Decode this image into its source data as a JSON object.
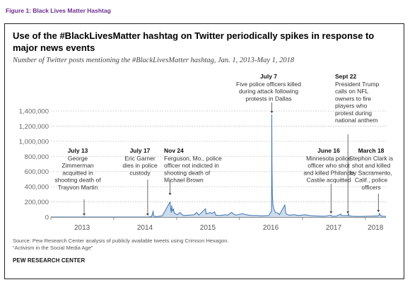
{
  "figure_caption": "Figure 1: Black Lives Matter Hashtag",
  "source_note": [
    "Source: Pew Research Center analysis of publicly available tweets using Crimson Hexagon.",
    "“Activism in the Social Media Age”"
  ],
  "brand": "PEW RESEARCH CENTER",
  "colors": {
    "line": "#3d74b0",
    "fill": "#6f9cc9",
    "grid": "#b9b9b9",
    "caption": "#6b2d8f",
    "axis": "#8c8c8c"
  },
  "chart_data": {
    "type": "line",
    "title": "Use of the #BlackLivesMatter hashtag on Twitter periodically spikes in response to major news events",
    "subtitle": "Number of Twitter posts mentioning the #BlackLivesMatter hashtag, Jan. 1, 2013-May 1, 2018",
    "xlabel": "",
    "ylabel": "",
    "x_range": [
      "2013-01-01",
      "2018-05-01"
    ],
    "ylim": [
      0,
      1400000
    ],
    "y_ticks": [
      0,
      200000,
      400000,
      600000,
      800000,
      1000000,
      1200000,
      1400000
    ],
    "y_tick_labels": [
      "0",
      "200,000",
      "400,000",
      "600,000",
      "800,000",
      "1,000,000",
      "1,200,000",
      "1,400,000"
    ],
    "x_ticks": [
      "2013-07-01",
      "2014-07-01",
      "2015-07-01",
      "2016-07-01",
      "2017-07-01",
      "2018-03-01"
    ],
    "x_tick_labels": [
      "2013",
      "2014",
      "2015",
      "2016",
      "2017",
      "2018"
    ],
    "grid": "horizontal dotted",
    "series": [
      {
        "points": [
          [
            "2013-01-01",
            0
          ],
          [
            "2013-07-13",
            0
          ],
          [
            "2013-07-14",
            5000
          ],
          [
            "2013-07-16",
            0
          ],
          [
            "2014-07-17",
            0
          ],
          [
            "2014-08-08",
            5000
          ],
          [
            "2014-08-11",
            25000
          ],
          [
            "2014-08-14",
            40000
          ],
          [
            "2014-08-18",
            80000
          ],
          [
            "2014-08-20",
            15000
          ],
          [
            "2014-08-25",
            10000
          ],
          [
            "2014-09-05",
            6000
          ],
          [
            "2014-10-10",
            15000
          ],
          [
            "2014-11-24",
            200000
          ],
          [
            "2014-11-25",
            170000
          ],
          [
            "2014-11-27",
            110000
          ],
          [
            "2014-12-01",
            60000
          ],
          [
            "2014-12-04",
            150000
          ],
          [
            "2014-12-06",
            100000
          ],
          [
            "2014-12-10",
            80000
          ],
          [
            "2014-12-14",
            110000
          ],
          [
            "2014-12-18",
            50000
          ],
          [
            "2014-12-24",
            45000
          ],
          [
            "2015-01-05",
            30000
          ],
          [
            "2015-01-19",
            60000
          ],
          [
            "2015-02-10",
            20000
          ],
          [
            "2015-03-12",
            25000
          ],
          [
            "2015-04-12",
            30000
          ],
          [
            "2015-04-28",
            60000
          ],
          [
            "2015-05-10",
            25000
          ],
          [
            "2015-06-18",
            110000
          ],
          [
            "2015-06-22",
            40000
          ],
          [
            "2015-07-16",
            60000
          ],
          [
            "2015-07-23",
            45000
          ],
          [
            "2015-08-10",
            70000
          ],
          [
            "2015-08-16",
            25000
          ],
          [
            "2015-09-10",
            20000
          ],
          [
            "2015-10-10",
            30000
          ],
          [
            "2015-10-25",
            25000
          ],
          [
            "2015-11-16",
            60000
          ],
          [
            "2015-11-28",
            40000
          ],
          [
            "2015-12-12",
            25000
          ],
          [
            "2016-01-18",
            45000
          ],
          [
            "2016-02-10",
            30000
          ],
          [
            "2016-03-10",
            20000
          ],
          [
            "2016-04-10",
            20000
          ],
          [
            "2016-05-10",
            15000
          ],
          [
            "2016-06-20",
            20000
          ],
          [
            "2016-07-05",
            80000
          ],
          [
            "2016-07-06",
            400000
          ],
          [
            "2016-07-07",
            1350000
          ],
          [
            "2016-07-08",
            700000
          ],
          [
            "2016-07-10",
            300000
          ],
          [
            "2016-07-14",
            150000
          ],
          [
            "2016-07-20",
            100000
          ],
          [
            "2016-07-28",
            60000
          ],
          [
            "2016-08-14",
            50000
          ],
          [
            "2016-08-20",
            30000
          ],
          [
            "2016-09-21",
            160000
          ],
          [
            "2016-09-24",
            80000
          ],
          [
            "2016-09-28",
            40000
          ],
          [
            "2016-10-15",
            25000
          ],
          [
            "2016-11-15",
            30000
          ],
          [
            "2016-12-10",
            20000
          ],
          [
            "2017-01-15",
            30000
          ],
          [
            "2017-02-10",
            20000
          ],
          [
            "2017-03-10",
            15000
          ],
          [
            "2017-04-10",
            12000
          ],
          [
            "2017-05-10",
            10000
          ],
          [
            "2017-06-16",
            25000
          ],
          [
            "2017-06-20",
            12000
          ],
          [
            "2017-07-15",
            10000
          ],
          [
            "2017-08-12",
            40000
          ],
          [
            "2017-08-15",
            20000
          ],
          [
            "2017-09-22",
            18000
          ],
          [
            "2017-09-25",
            45000
          ],
          [
            "2017-09-28",
            15000
          ],
          [
            "2017-10-15",
            10000
          ],
          [
            "2017-11-15",
            8000
          ],
          [
            "2017-12-15",
            8000
          ],
          [
            "2018-01-15",
            10000
          ],
          [
            "2018-02-15",
            12000
          ],
          [
            "2018-03-18",
            15000
          ],
          [
            "2018-03-22",
            30000
          ],
          [
            "2018-03-25",
            50000
          ],
          [
            "2018-03-28",
            20000
          ],
          [
            "2018-04-10",
            12000
          ],
          [
            "2018-05-01",
            8000
          ]
        ]
      }
    ],
    "annotations": [
      {
        "date": "2013-07-13",
        "label": "July 13",
        "lines": [
          "George",
          "Zimmerman",
          "acquitted in",
          "shooting death of",
          "Trayvon Martin"
        ]
      },
      {
        "date": "2014-07-17",
        "label": "July 17",
        "lines": [
          "Eric Garner",
          "dies in police",
          "custody"
        ]
      },
      {
        "date": "2014-11-24",
        "label": "Nov 24",
        "lines": [
          "Ferguson, Mo., police",
          "officer not indicted in",
          "shooting death of",
          "Michael Brown"
        ]
      },
      {
        "date": "2016-07-07",
        "label": "July 7",
        "lines": [
          "Five police officers killed",
          "during attack following",
          "protests in Dallas"
        ]
      },
      {
        "date": "2017-06-16",
        "label": "June 16",
        "lines": [
          "Minnesota police",
          "officer who shot",
          "and killed Philando",
          "Castile acquitted"
        ]
      },
      {
        "date": "2017-09-22",
        "label": "Sept 22",
        "lines": [
          "President Trump",
          "calls on NFL",
          "owners to fire",
          "players who",
          "protest during",
          "national anthem"
        ]
      },
      {
        "date": "2018-03-18",
        "label": "March 18",
        "lines": [
          "Stephon Clark is",
          "shot and killed",
          "by Sacramento,",
          "Calif., police",
          "officers"
        ]
      }
    ]
  }
}
